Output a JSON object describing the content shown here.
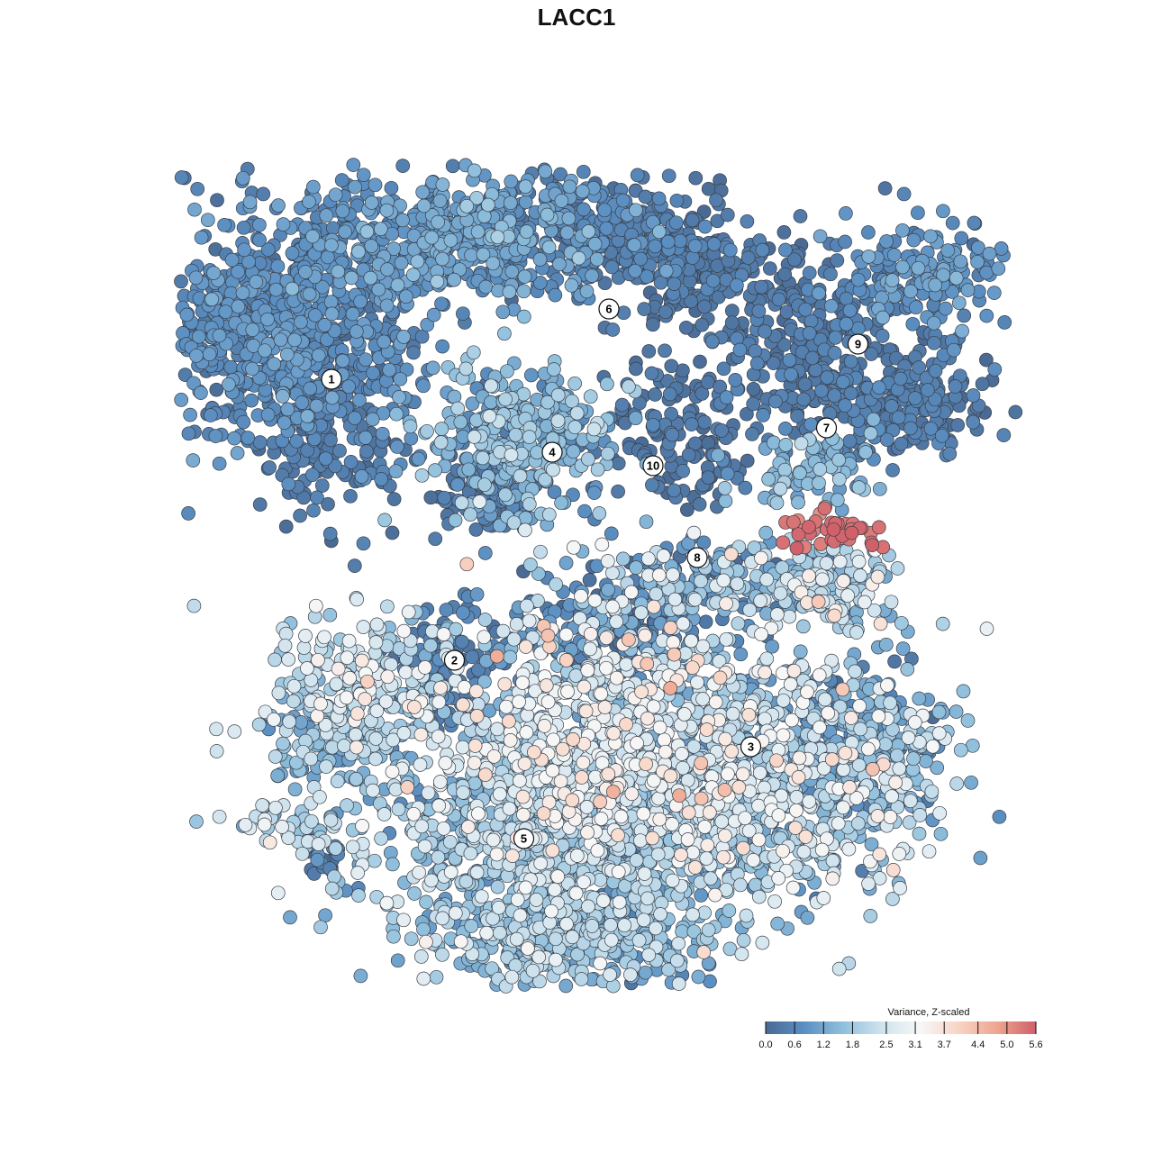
{
  "chart_data": {
    "type": "scatter",
    "title": "LACC1",
    "xlabel": "",
    "ylabel": "",
    "grid": false,
    "legend": {
      "title": "Variance, Z-scaled",
      "placement": "bottom-right",
      "ticks": [
        "0.0",
        "0.6",
        "1.2",
        "1.8",
        "2.5",
        "3.1",
        "3.7",
        "4.4",
        "5.0",
        "5.6"
      ],
      "range": [
        0.0,
        5.6
      ],
      "colors": [
        "#4a6a94",
        "#5b8fc2",
        "#8fbfdc",
        "#cfe3ee",
        "#f7f7f7",
        "#f8d4c4",
        "#eea58f",
        "#d0606a"
      ]
    },
    "clusters": [
      {
        "label": "1",
        "x": -7.2,
        "y": 7.3
      },
      {
        "label": "2",
        "x": -3.3,
        "y": -3.1
      },
      {
        "label": "3",
        "x": 6.1,
        "y": -6.3
      },
      {
        "label": "4",
        "x": -0.2,
        "y": 4.6
      },
      {
        "label": "5",
        "x": -1.1,
        "y": -9.7
      },
      {
        "label": "6",
        "x": 1.6,
        "y": 9.9
      },
      {
        "label": "7",
        "x": 8.5,
        "y": 5.5
      },
      {
        "label": "8",
        "x": 4.4,
        "y": 0.7
      },
      {
        "label": "9",
        "x": 9.5,
        "y": 8.6
      },
      {
        "label": "10",
        "x": 3.0,
        "y": 4.1
      }
    ]
  }
}
